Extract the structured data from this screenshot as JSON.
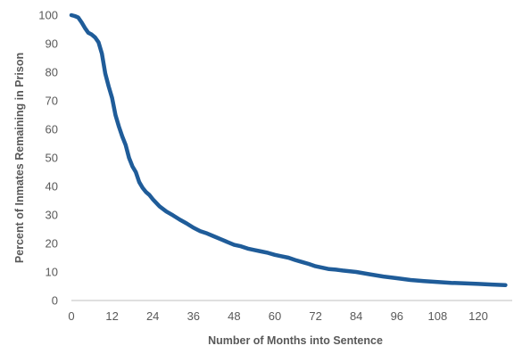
{
  "chart_data": {
    "type": "line",
    "title": "",
    "xlabel": "Number of Months into Sentence",
    "ylabel": "Percent of Inmates Remaining in Prison",
    "xlim": [
      0,
      130
    ],
    "ylim": [
      0,
      100
    ],
    "x_ticks": [
      0,
      12,
      24,
      36,
      48,
      60,
      72,
      84,
      96,
      108,
      120
    ],
    "y_ticks": [
      0,
      10,
      20,
      30,
      40,
      50,
      60,
      70,
      80,
      90,
      100
    ],
    "grid": false,
    "legend": "none",
    "series": [
      {
        "color": "#1f5c99",
        "x": [
          0,
          1,
          2,
          3,
          4,
          5,
          6,
          7,
          8,
          9,
          10,
          11,
          12,
          13,
          14,
          15,
          16,
          17,
          18,
          19,
          20,
          21,
          22,
          23,
          24,
          26,
          28,
          30,
          32,
          34,
          36,
          38,
          40,
          42,
          44,
          46,
          48,
          50,
          52,
          54,
          56,
          58,
          60,
          62,
          64,
          66,
          68,
          70,
          72,
          74,
          76,
          78,
          80,
          84,
          88,
          92,
          96,
          100,
          104,
          108,
          112,
          116,
          120,
          124,
          128
        ],
        "y": [
          100,
          99.7,
          99.2,
          97.5,
          95.5,
          93.8,
          93.2,
          92.2,
          90.5,
          86.5,
          79.5,
          75,
          71,
          65,
          61,
          57.5,
          54.5,
          50,
          47,
          45,
          41.5,
          39.5,
          38,
          37,
          35.5,
          33,
          31.2,
          29.8,
          28.3,
          27,
          25.5,
          24.3,
          23.5,
          22.5,
          21.5,
          20.5,
          19.5,
          19,
          18.2,
          17.7,
          17.2,
          16.7,
          16,
          15.5,
          15,
          14.2,
          13.5,
          12.8,
          12,
          11.5,
          11,
          10.8,
          10.5,
          10,
          9.2,
          8.4,
          7.8,
          7.2,
          6.8,
          6.5,
          6.2,
          6,
          5.8,
          5.6,
          5.4
        ]
      }
    ]
  }
}
